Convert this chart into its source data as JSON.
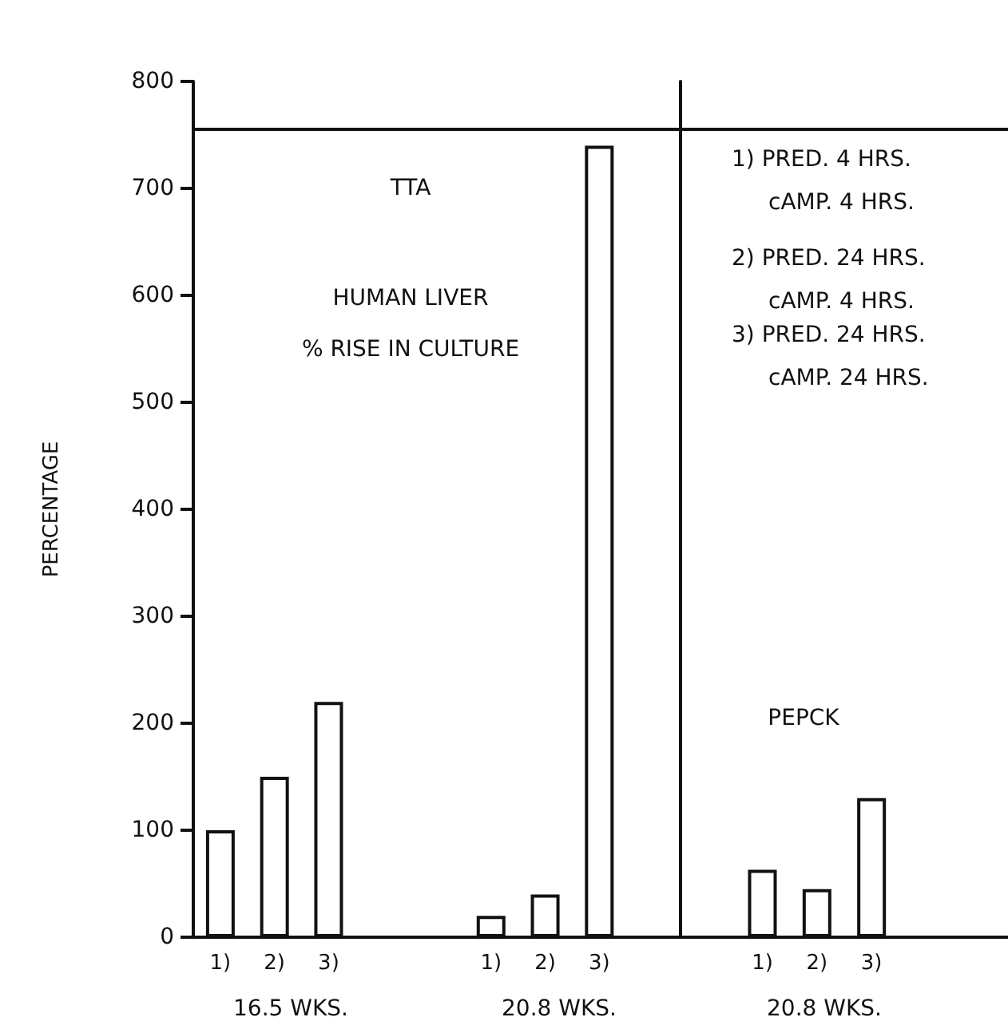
{
  "chart_data": [
    {
      "type": "bar",
      "categories": [
        "1)",
        "2)",
        "3)",
        null,
        null,
        "1)",
        "2)",
        "3)",
        null
      ],
      "values": [
        100,
        150,
        220,
        null,
        null,
        20,
        40,
        740,
        null
      ],
      "color": "#ffffff",
      "ylim": [
        0,
        800
      ],
      "yticks": [
        0,
        100,
        200,
        300,
        400,
        500,
        600,
        700,
        800
      ],
      "ylabel": "PERCENTAGE",
      "ref_lines": [
        {
          "axis": "y",
          "value": 755
        }
      ],
      "annotations": [
        "TTA",
        "HUMAN LIVER",
        "% RISE IN CULTURE",
        "16.5 WKS.",
        "20.8 WKS."
      ],
      "grid": false
    },
    {
      "type": "bar",
      "categories": [
        null,
        "1)",
        "2)",
        "3)",
        null,
        null
      ],
      "values": [
        null,
        63,
        45,
        130,
        null,
        null
      ],
      "color": "#ffffff",
      "ylim": [
        0,
        800
      ],
      "tick_labels": "x",
      "ref_lines": [
        {
          "axis": "y",
          "value": 755
        }
      ],
      "annotations": [
        "1) PRED. 4 HRS.",
        "cAMP. 4 HRS.",
        "2) PRED. 24 HRS.",
        "cAMP. 4 HRS.",
        "3) PRED. 24 HRS.",
        "cAMP. 24 HRS.",
        "PEPCK",
        "20.8 WKS."
      ],
      "grid": false
    }
  ]
}
